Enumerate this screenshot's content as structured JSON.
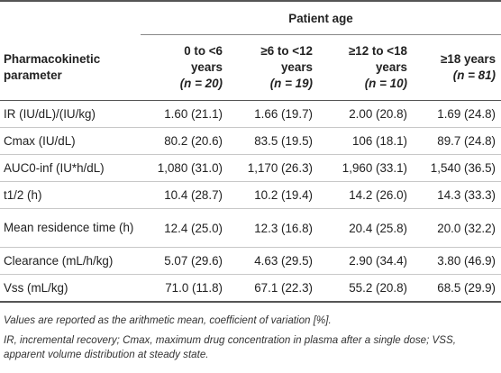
{
  "table": {
    "group_header": "Patient age",
    "param_header": [
      "Pharmacokinetic",
      "parameter"
    ],
    "columns": [
      {
        "range": "0 to <6",
        "unit": "years",
        "n_label": "n",
        "n_value": "20"
      },
      {
        "range": "≥6 to <12",
        "unit": "years",
        "n_label": "n",
        "n_value": "19"
      },
      {
        "range": "≥12 to <18",
        "unit": "years",
        "n_label": "n",
        "n_value": "10"
      },
      {
        "range": "≥18 years",
        "unit": "",
        "n_label": "n",
        "n_value": "81"
      }
    ],
    "rows": [
      {
        "param": "IR (IU/dL)/(IU/kg)",
        "values": [
          "1.60 (21.1)",
          "1.66 (19.7)",
          "2.00 (20.8)",
          "1.69 (24.8)"
        ]
      },
      {
        "param": "Cmax (IU/dL)",
        "values": [
          "80.2 (20.6)",
          "83.5 (19.5)",
          "106 (18.1)",
          "89.7 (24.8)"
        ]
      },
      {
        "param": "AUC0-inf (IU*h/dL)",
        "values": [
          "1,080 (31.0)",
          "1,170 (26.3)",
          "1,960 (33.1)",
          "1,540 (36.5)"
        ]
      },
      {
        "param": "t1/2 (h)",
        "values": [
          "10.4 (28.7)",
          "10.2 (19.4)",
          "14.2 (26.0)",
          "14.3 (33.3)"
        ]
      },
      {
        "param": "Mean residence time (h)",
        "values": [
          "12.4 (25.0)",
          "12.3 (16.8)",
          "20.4 (25.8)",
          "20.0 (32.2)"
        ]
      },
      {
        "param": "Clearance (mL/h/kg)",
        "values": [
          "5.07 (29.6)",
          "4.63 (29.5)",
          "2.90 (34.4)",
          "3.80 (46.9)"
        ]
      },
      {
        "param": "Vss (mL/kg)",
        "values": [
          "71.0 (11.8)",
          "67.1 (22.3)",
          "55.2 (20.8)",
          "68.5 (29.9)"
        ]
      }
    ]
  },
  "footnotes": [
    "Values are reported as the arithmetic mean, coefficient of variation [%].",
    "IR, incremental recovery; Cmax, maximum drug concentration in plasma after a single dose; VSS, apparent volume distribution at steady state."
  ]
}
